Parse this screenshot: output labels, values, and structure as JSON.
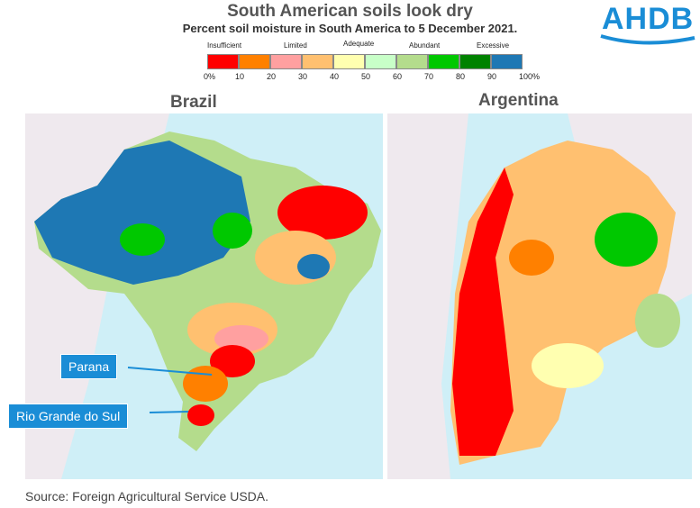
{
  "title": "South American soils look dry",
  "subtitle": "Percent soil moisture in South America to 5 December 2021.",
  "logo": "AHDB",
  "legend": {
    "categories": [
      "Insufficient",
      "Limited",
      "Adequate",
      "Abundant",
      "Excessive"
    ],
    "swatches": [
      "#ff0000",
      "#ff8000",
      "#ffa0a0",
      "#ffc070",
      "#ffffb0",
      "#c8ffc8",
      "#b4dc8c",
      "#00c800",
      "#008200",
      "#1e78b4"
    ],
    "ticks": [
      "0%",
      "10",
      "20",
      "30",
      "40",
      "50",
      "60",
      "70",
      "80",
      "90",
      "100%"
    ]
  },
  "panels": {
    "brazil": "Brazil",
    "argentina": "Argentina"
  },
  "labels": {
    "parana": "Parana",
    "rio_grande": "Rio Grande do Sul"
  },
  "source": "Source: Foreign Agricultural Service USDA."
}
